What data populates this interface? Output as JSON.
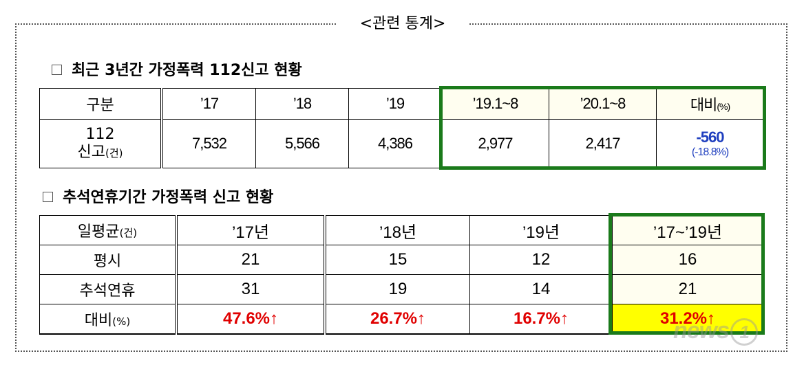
{
  "frame_title": "<관련 통계>",
  "section1": {
    "title": "최근 3년간 가정폭력 112신고 현황",
    "headers": [
      "구분",
      "’17",
      "’18",
      "’19",
      "’19.1~8",
      "’20.1~8",
      "대비"
    ],
    "header_pct": "(%)",
    "row_label_line1": "112",
    "row_label_line2": "신고",
    "row_label_unit": "(건)",
    "values": [
      "7,532",
      "5,566",
      "4,386",
      "2,977",
      "2,417"
    ],
    "diff": "-560",
    "diff_pct": "(-18.8%)"
  },
  "section2": {
    "title": "추석연휴기간 가정폭력 신고 현황",
    "header_label": "일평균",
    "header_unit": "(건)",
    "headers": [
      "’17년",
      "’18년",
      "’19년",
      "’17~’19년"
    ],
    "rows": [
      {
        "label": "평시",
        "values": [
          "21",
          "15",
          "12",
          "16"
        ]
      },
      {
        "label": "추석연휴",
        "values": [
          "31",
          "19",
          "14",
          "21"
        ]
      }
    ],
    "ratio_label": "대비",
    "ratio_unit": "(%)",
    "ratios": [
      "47.6%↑",
      "26.7%↑",
      "16.7%↑",
      "31.2%↑"
    ]
  },
  "watermark": {
    "text": "news",
    "mark": "1"
  },
  "colors": {
    "highlight_border": "#1a7a1a",
    "increase": "#e00000",
    "decrease": "#1f3fbf",
    "total_highlight": "#ffff00"
  }
}
